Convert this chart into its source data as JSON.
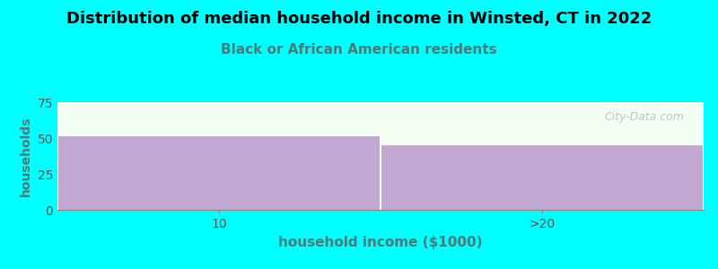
{
  "title": "Distribution of median household income in Winsted, CT in 2022",
  "subtitle": "Black or African American residents",
  "xlabel": "household income ($1000)",
  "ylabel": "households",
  "categories": [
    "10",
    ">20"
  ],
  "values": [
    51,
    45
  ],
  "bar_color": "#C4A8D4",
  "ylim": [
    0,
    75
  ],
  "yticks": [
    0,
    25,
    50,
    75
  ],
  "background_color": "#00FFFF",
  "plot_bg_color": "#F2FFF2",
  "title_fontsize": 13,
  "subtitle_fontsize": 11,
  "subtitle_color": "#4A7A7A",
  "axis_label_color": "#4A7A7A",
  "tick_label_color": "#555555",
  "watermark": "City-Data.com"
}
